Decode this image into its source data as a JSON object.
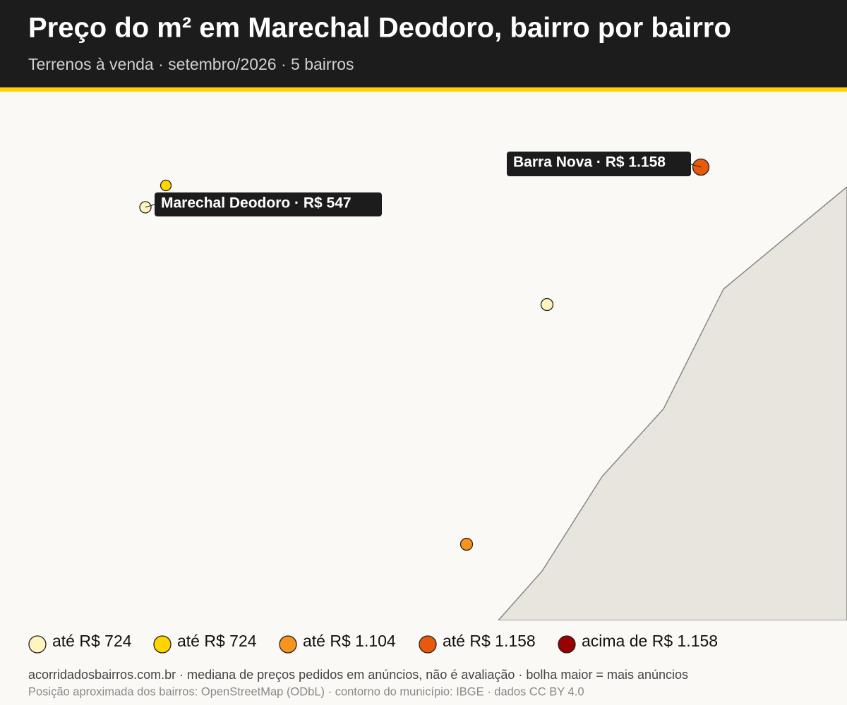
{
  "header": {
    "title": "Preço do m² em Marechal Deodoro, bairro por bairro",
    "subtitle": "Terrenos à venda · setembro/2026 · 5 bairros"
  },
  "map": {
    "labels": [
      "Marechal Deodoro · R$ 547",
      "Barra Nova · R$ 1.158"
    ]
  },
  "legend": {
    "items": [
      {
        "label": "até R$ 724",
        "color": "#fff3bf"
      },
      {
        "label": "até R$ 724",
        "color": "#ffd400"
      },
      {
        "label": "até R$ 1.104",
        "color": "#f7941d"
      },
      {
        "label": "até R$ 1.158",
        "color": "#e8590c"
      },
      {
        "label": "acima de R$ 1.158",
        "color": "#990000"
      }
    ]
  },
  "footer": {
    "source": "acorridadosbairros.com.br · mediana de preços pedidos em anúncios, não é avaliação · bolha maior = mais anúncios",
    "credits": "Posição aproximada dos bairros: OpenStreetMap (ODbL) · contorno do município: IBGE · dados CC BY 4.0"
  }
}
